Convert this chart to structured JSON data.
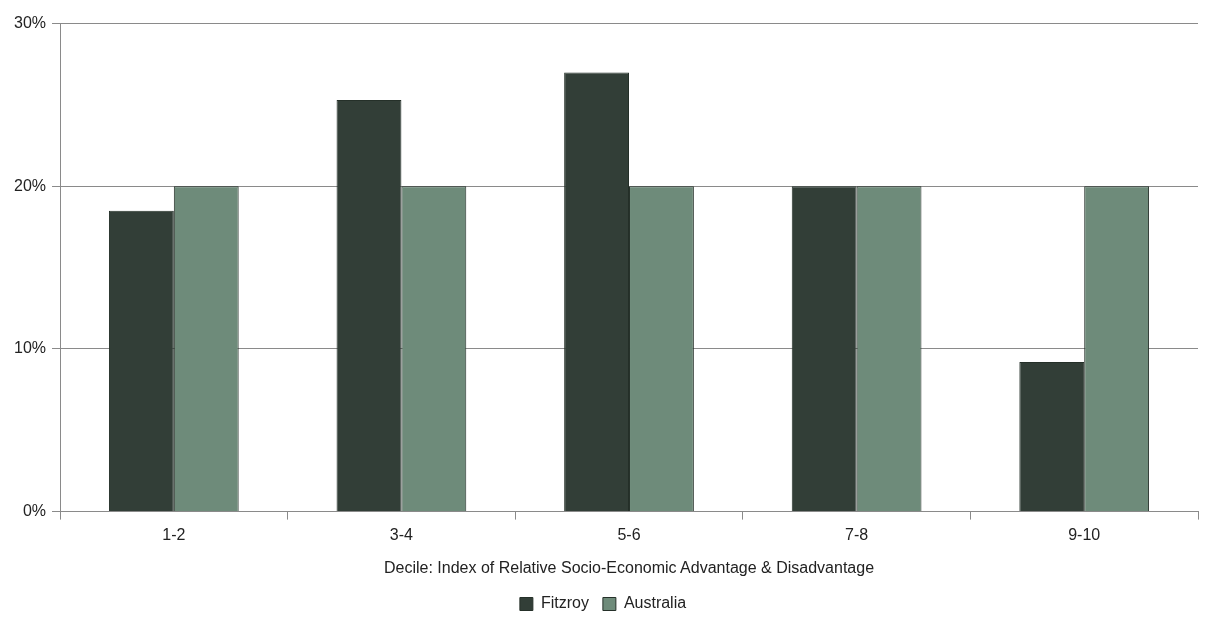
{
  "chart_data": {
    "type": "bar",
    "xlabel": "Decile: Index of Relative Socio-Economic Advantage & Disadvantage",
    "categories": [
      "1-2",
      "3-4",
      "5-6",
      "7-8",
      "9-10"
    ],
    "series": [
      {
        "name": "Fitzroy",
        "color": "#323e37",
        "values": [
          18.5,
          25.3,
          27,
          20,
          9.2
        ]
      },
      {
        "name": "Australia",
        "color": "#6e8b7a",
        "values": [
          20,
          20,
          20,
          20,
          20
        ]
      }
    ],
    "ylim": [
      0,
      30
    ],
    "yticks": [
      {
        "value": 0,
        "label": "0%"
      },
      {
        "value": 10,
        "label": "10%"
      },
      {
        "value": 20,
        "label": "20%"
      },
      {
        "value": 30,
        "label": "30%"
      }
    ],
    "grid": "y",
    "legend": "bottom"
  }
}
